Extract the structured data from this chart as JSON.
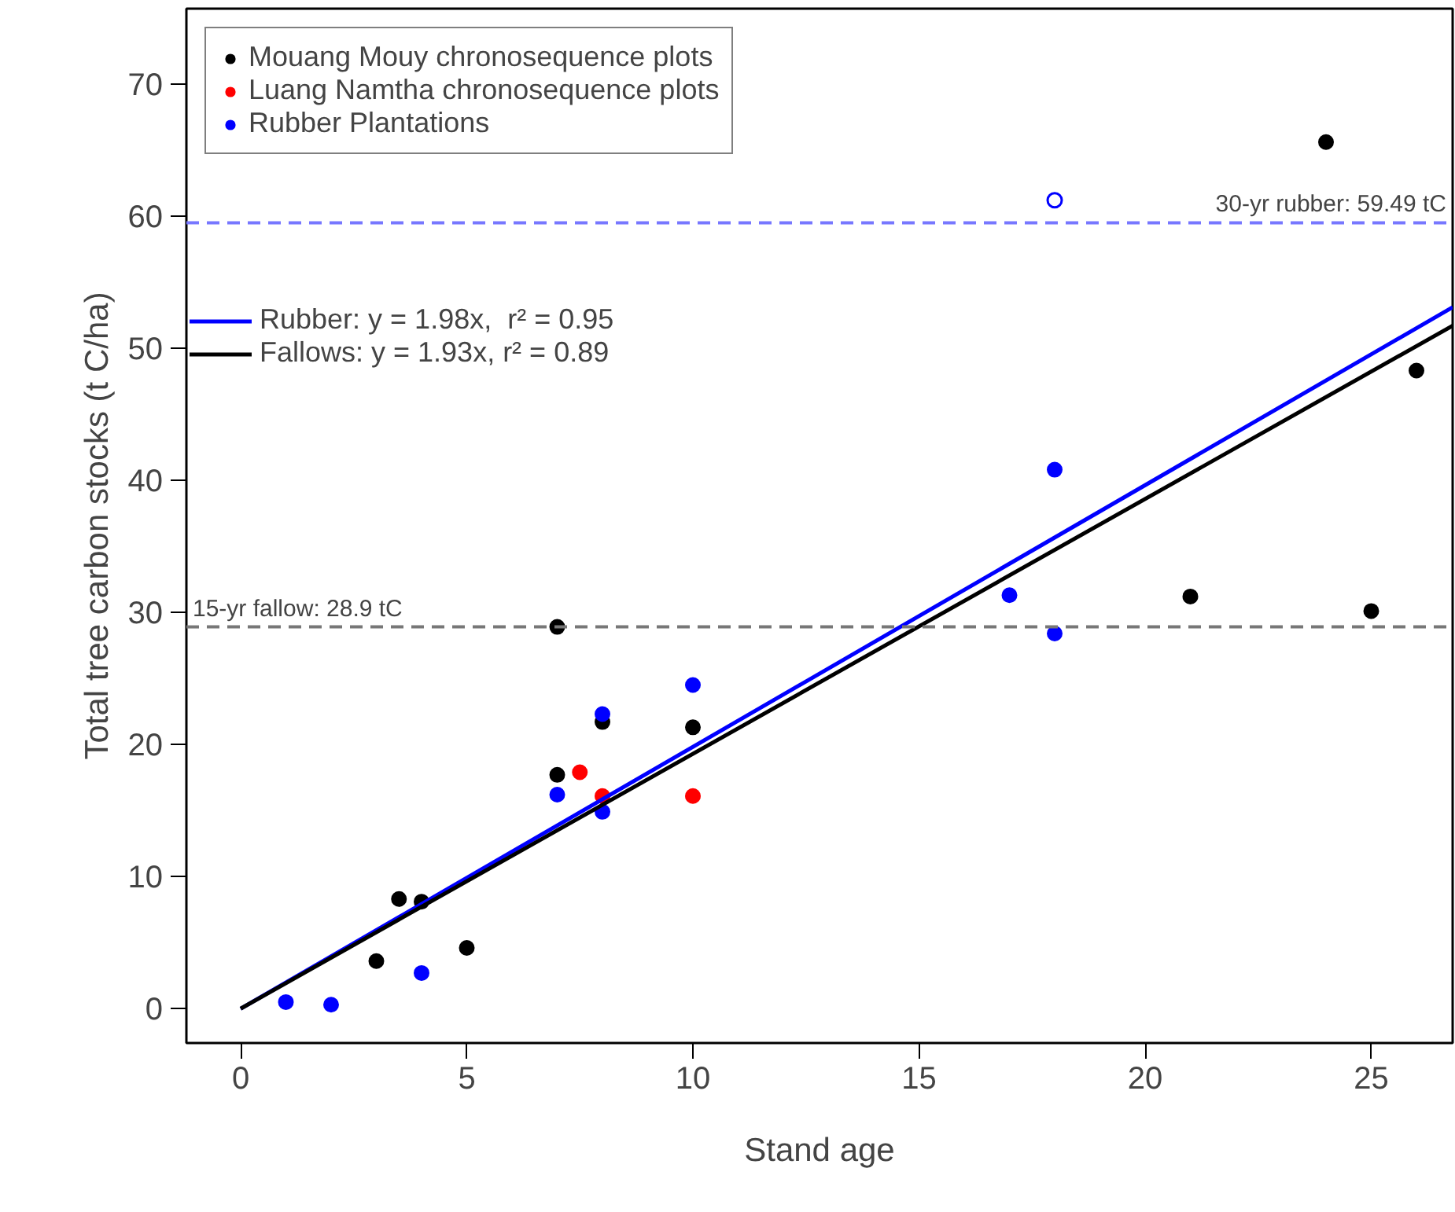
{
  "chart_data": {
    "type": "scatter",
    "xlabel": "Stand age",
    "ylabel": "Total tree carbon stocks (t C/ha)",
    "xlim": [
      -1.2,
      26.8
    ],
    "ylim": [
      -2.6,
      75.7
    ],
    "xticks": [
      0,
      5,
      10,
      15,
      20,
      25
    ],
    "yticks": [
      0,
      10,
      20,
      30,
      40,
      50,
      60,
      70
    ],
    "grid": false,
    "legend": "top left",
    "marker": "circle",
    "series": [
      {
        "name": "Mouang Mouy chronosequence plots",
        "color": "#000000",
        "x": [
          3,
          3.5,
          4,
          5,
          7,
          7,
          8,
          10,
          21,
          24,
          25,
          26
        ],
        "values": [
          3.6,
          8.3,
          8.1,
          4.6,
          28.9,
          17.7,
          21.7,
          21.3,
          31.2,
          65.6,
          30.1,
          48.3
        ]
      },
      {
        "name": "Luang Namtha chronosequence plots",
        "color": "#ff0000",
        "x": [
          7.5,
          8,
          10
        ],
        "values": [
          17.9,
          16.1,
          16.1
        ]
      },
      {
        "name": "Rubber Plantations",
        "color": "#0000ff",
        "x": [
          1,
          2,
          4,
          7,
          8,
          8,
          10,
          17,
          18,
          18
        ],
        "values": [
          0.5,
          0.3,
          2.7,
          16.2,
          22.3,
          14.9,
          24.5,
          31.3,
          40.8,
          28.4
        ]
      },
      {
        "color": "#0000ff",
        "x": [
          18
        ],
        "values": [
          61.2
        ]
      },
      {
        "type": "line",
        "name": "Rubber: y = 1.98x,  r² = 0.95",
        "color": "#0000ff",
        "x": [
          0,
          26.8
        ],
        "values": [
          0,
          53.1
        ],
        "marker": "none"
      },
      {
        "type": "line",
        "name": "Fallows: y = 1.93x, r² = 0.89",
        "color": "#000000",
        "x": [
          0,
          26.8
        ],
        "values": [
          0,
          51.7
        ],
        "marker": "none"
      }
    ],
    "ref_lines": [
      {
        "axis": "y",
        "value": 28.9,
        "label": "15-yr fallow: 28.9 tC",
        "color": "#777777",
        "line_style": "dashed"
      },
      {
        "axis": "y",
        "value": 59.49,
        "label": "30-yr rubber: 59.49 tC",
        "color": "#7777ff",
        "line_style": "dashed"
      }
    ]
  }
}
